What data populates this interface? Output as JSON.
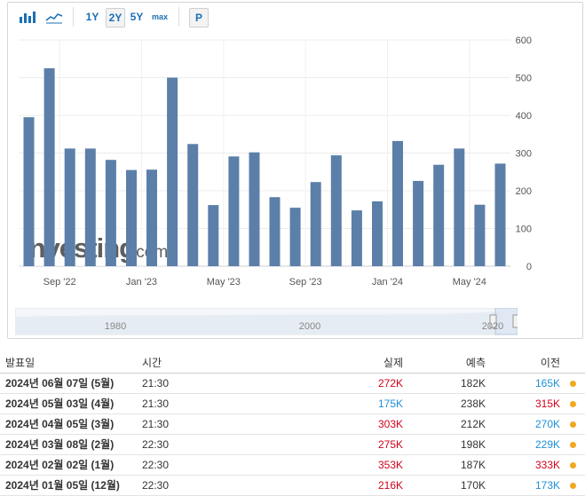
{
  "toolbar": {
    "bar_icon": "bar-chart-icon",
    "line_icon": "area-chart-icon",
    "ranges": [
      "1Y",
      "2Y",
      "5Y",
      "max"
    ],
    "active_range": "2Y",
    "p_label": "P"
  },
  "watermark": {
    "brand": "Investing",
    "suffix": ".com"
  },
  "navigator": {
    "labels": [
      "1980",
      "2000",
      "2020"
    ]
  },
  "chart_data": {
    "type": "bar",
    "color": "#5b7fa8",
    "values": [
      395,
      525,
      312,
      312,
      282,
      255,
      256,
      500,
      324,
      162,
      291,
      302,
      183,
      155,
      223,
      294,
      148,
      172,
      332,
      226,
      269,
      312,
      163,
      272
    ],
    "ylim": [
      0,
      600
    ],
    "yticks": [
      0,
      100,
      200,
      300,
      400,
      500,
      600
    ],
    "xtick_labels": [
      {
        "index": 1.5,
        "label": "Sep '22"
      },
      {
        "index": 5.5,
        "label": "Jan '23"
      },
      {
        "index": 9.5,
        "label": "May '23"
      },
      {
        "index": 13.5,
        "label": "Sep '23"
      },
      {
        "index": 17.5,
        "label": "Jan '24"
      },
      {
        "index": 21.5,
        "label": "May '24"
      }
    ],
    "grid": true,
    "y_axis_side": "right"
  },
  "table": {
    "headers": {
      "date": "발표일",
      "time": "시간",
      "actual": "실제",
      "forecast": "예측",
      "previous": "이전"
    },
    "rows": [
      {
        "date": "2024년 06월 07일 (5월)",
        "time": "21:30",
        "actual": "272K",
        "actual_dir": "up",
        "forecast": "182K",
        "previous": "165K",
        "previous_dir": "down"
      },
      {
        "date": "2024년 05월 03일 (4월)",
        "time": "21:30",
        "actual": "175K",
        "actual_dir": "down",
        "forecast": "238K",
        "previous": "315K",
        "previous_dir": "up"
      },
      {
        "date": "2024년 04월 05일 (3월)",
        "time": "21:30",
        "actual": "303K",
        "actual_dir": "up",
        "forecast": "212K",
        "previous": "270K",
        "previous_dir": "down"
      },
      {
        "date": "2024년 03월 08일 (2월)",
        "time": "22:30",
        "actual": "275K",
        "actual_dir": "up",
        "forecast": "198K",
        "previous": "229K",
        "previous_dir": "down"
      },
      {
        "date": "2024년 02월 02일 (1월)",
        "time": "22:30",
        "actual": "353K",
        "actual_dir": "up",
        "forecast": "187K",
        "previous": "333K",
        "previous_dir": "up"
      },
      {
        "date": "2024년 01월 05일 (12월)",
        "time": "22:30",
        "actual": "216K",
        "actual_dir": "up",
        "forecast": "170K",
        "previous": "173K",
        "previous_dir": "down"
      }
    ]
  }
}
